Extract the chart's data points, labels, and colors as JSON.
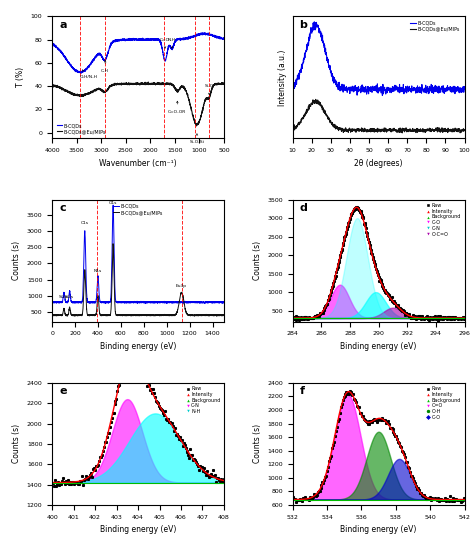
{
  "panel_labels": [
    "a",
    "b",
    "c",
    "d",
    "e",
    "f"
  ],
  "colors": {
    "blue": "#0000EE",
    "black": "#111111",
    "red": "#FF0000",
    "green": "#00AA00",
    "cyan": "#00CCCC",
    "magenta": "#FF00FF",
    "dark_magenta": "#AA00AA",
    "navy": "#000088",
    "dark_green": "#006600"
  },
  "ftir": {
    "xlabel": "Wavenumber (cm⁻¹)",
    "ylabel": "T (%)",
    "xlim": [
      4000,
      500
    ],
    "vlines": [
      3430,
      2920,
      1720,
      1100,
      800
    ],
    "legend": [
      "B-CQDs",
      "B-CQDs@Eu/MIPs"
    ]
  },
  "xrd": {
    "xlabel": "2θ (degrees)",
    "ylabel": "Intensity (a.u.)",
    "xlim": [
      10,
      100
    ],
    "legend": [
      "B-CQDs",
      "B-CQDs@Eu/MIPs"
    ]
  },
  "xps_survey": {
    "xlabel": "Binding energy (eV)",
    "ylabel": "Counts (s)",
    "xlim": [
      0,
      1500
    ],
    "legend": [
      "B-CQDs",
      "B-CQDs@Eu/MIPs"
    ],
    "vlines": [
      395,
      1130
    ]
  },
  "xps_c1s": {
    "xlabel": "Binding energy (eV)",
    "ylabel": "Counts (s)",
    "xlim": [
      284,
      296
    ],
    "ylim": [
      200,
      3500
    ],
    "legend": [
      "Raw",
      "Intensity",
      "Background",
      "C-O",
      "C-N",
      "O-C=O"
    ],
    "legend_colors": [
      "#000000",
      "#FF0000",
      "#00BB00",
      "#FF00FF",
      "#00CCCC",
      "#AA00AA"
    ],
    "legend_markers": [
      "s",
      "^",
      "^",
      "v",
      "v",
      "v"
    ]
  },
  "xps_n1s": {
    "xlabel": "Binding energy (eV)",
    "ylabel": "Counts (s)",
    "xlim": [
      400,
      408
    ],
    "ylim": [
      1200,
      2400
    ],
    "legend": [
      "Raw",
      "Intensity",
      "Background",
      "C-N",
      "N-H"
    ],
    "legend_colors": [
      "#000000",
      "#FF0000",
      "#00BB00",
      "#FF00FF",
      "#00CCCC"
    ],
    "legend_markers": [
      "s",
      "^",
      "^",
      "v",
      "v"
    ]
  },
  "xps_o1s": {
    "xlabel": "Binding energy (eV)",
    "ylabel": "Counts (s)",
    "xlim": [
      532,
      542
    ],
    "ylim": [
      600,
      2400
    ],
    "legend": [
      "Raw",
      "Intensity",
      "Background",
      "C=O",
      "O-H",
      "C-O"
    ],
    "legend_colors": [
      "#000000",
      "#FF0000",
      "#00BB00",
      "#FF00FF",
      "#008800",
      "#0000CC"
    ],
    "legend_markers": [
      "s",
      "^",
      "^",
      "v",
      "o",
      "D"
    ]
  }
}
